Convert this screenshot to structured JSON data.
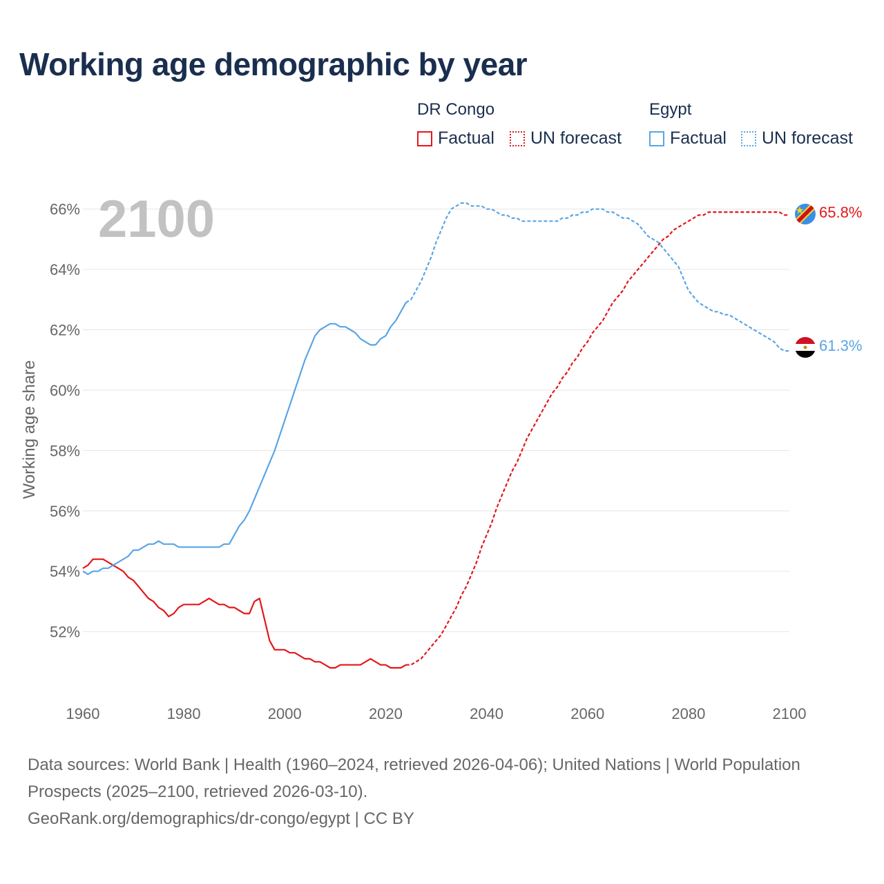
{
  "title": "Working age demographic by year",
  "legend": {
    "groups": [
      {
        "name": "DR Congo",
        "factual_label": "Factual",
        "forecast_label": "UN forecast",
        "color": "#e3171a"
      },
      {
        "name": "Egypt",
        "factual_label": "Factual",
        "forecast_label": "UN forecast",
        "color": "#5aa5e6"
      }
    ]
  },
  "chart_data": {
    "type": "line",
    "title": "Working age demographic by year",
    "xlabel": "",
    "ylabel": "Working age share",
    "xlim": [
      1960,
      2100
    ],
    "ylim": [
      50,
      67
    ],
    "x_ticks": [
      "1960",
      "1980",
      "2000",
      "2020",
      "2040",
      "2060",
      "2080",
      "2100"
    ],
    "y_ticks": [
      "52%",
      "54%",
      "56%",
      "58%",
      "60%",
      "62%",
      "64%",
      "66%"
    ],
    "y_tick_values": [
      52,
      54,
      56,
      58,
      60,
      62,
      64,
      66
    ],
    "year_label": "2100",
    "grid": true,
    "series": [
      {
        "name": "DR Congo",
        "color": "#e3171a",
        "end_label": "65.8%",
        "factual": [
          [
            1960,
            54.1
          ],
          [
            1961,
            54.2
          ],
          [
            1962,
            54.4
          ],
          [
            1963,
            54.4
          ],
          [
            1964,
            54.4
          ],
          [
            1965,
            54.3
          ],
          [
            1966,
            54.2
          ],
          [
            1967,
            54.1
          ],
          [
            1968,
            54.0
          ],
          [
            1969,
            53.8
          ],
          [
            1970,
            53.7
          ],
          [
            1971,
            53.5
          ],
          [
            1972,
            53.3
          ],
          [
            1973,
            53.1
          ],
          [
            1974,
            53.0
          ],
          [
            1975,
            52.8
          ],
          [
            1976,
            52.7
          ],
          [
            1977,
            52.5
          ],
          [
            1978,
            52.6
          ],
          [
            1979,
            52.8
          ],
          [
            1980,
            52.9
          ],
          [
            1981,
            52.9
          ],
          [
            1982,
            52.9
          ],
          [
            1983,
            52.9
          ],
          [
            1984,
            53.0
          ],
          [
            1985,
            53.1
          ],
          [
            1986,
            53.0
          ],
          [
            1987,
            52.9
          ],
          [
            1988,
            52.9
          ],
          [
            1989,
            52.8
          ],
          [
            1990,
            52.8
          ],
          [
            1991,
            52.7
          ],
          [
            1992,
            52.6
          ],
          [
            1993,
            52.6
          ],
          [
            1994,
            53.0
          ],
          [
            1995,
            53.1
          ],
          [
            1996,
            52.4
          ],
          [
            1997,
            51.7
          ],
          [
            1998,
            51.4
          ],
          [
            1999,
            51.4
          ],
          [
            2000,
            51.4
          ],
          [
            2001,
            51.3
          ],
          [
            2002,
            51.3
          ],
          [
            2003,
            51.2
          ],
          [
            2004,
            51.1
          ],
          [
            2005,
            51.1
          ],
          [
            2006,
            51.0
          ],
          [
            2007,
            51.0
          ],
          [
            2008,
            50.9
          ],
          [
            2009,
            50.8
          ],
          [
            2010,
            50.8
          ],
          [
            2011,
            50.9
          ],
          [
            2012,
            50.9
          ],
          [
            2013,
            50.9
          ],
          [
            2014,
            50.9
          ],
          [
            2015,
            50.9
          ],
          [
            2016,
            51.0
          ],
          [
            2017,
            51.1
          ],
          [
            2018,
            51.0
          ],
          [
            2019,
            50.9
          ],
          [
            2020,
            50.9
          ],
          [
            2021,
            50.8
          ],
          [
            2022,
            50.8
          ],
          [
            2023,
            50.8
          ],
          [
            2024,
            50.9
          ]
        ],
        "forecast": [
          [
            2024,
            50.9
          ],
          [
            2025,
            50.9
          ],
          [
            2026,
            51.0
          ],
          [
            2027,
            51.1
          ],
          [
            2028,
            51.3
          ],
          [
            2029,
            51.5
          ],
          [
            2030,
            51.7
          ],
          [
            2031,
            51.9
          ],
          [
            2032,
            52.2
          ],
          [
            2033,
            52.5
          ],
          [
            2034,
            52.8
          ],
          [
            2035,
            53.2
          ],
          [
            2036,
            53.5
          ],
          [
            2037,
            53.9
          ],
          [
            2038,
            54.3
          ],
          [
            2039,
            54.8
          ],
          [
            2040,
            55.2
          ],
          [
            2041,
            55.6
          ],
          [
            2042,
            56.1
          ],
          [
            2043,
            56.5
          ],
          [
            2044,
            56.9
          ],
          [
            2045,
            57.3
          ],
          [
            2046,
            57.6
          ],
          [
            2047,
            58.0
          ],
          [
            2048,
            58.4
          ],
          [
            2049,
            58.7
          ],
          [
            2050,
            59.0
          ],
          [
            2051,
            59.3
          ],
          [
            2052,
            59.6
          ],
          [
            2053,
            59.9
          ],
          [
            2054,
            60.1
          ],
          [
            2055,
            60.4
          ],
          [
            2056,
            60.6
          ],
          [
            2057,
            60.9
          ],
          [
            2058,
            61.1
          ],
          [
            2059,
            61.4
          ],
          [
            2060,
            61.6
          ],
          [
            2061,
            61.9
          ],
          [
            2062,
            62.1
          ],
          [
            2063,
            62.3
          ],
          [
            2064,
            62.6
          ],
          [
            2065,
            62.9
          ],
          [
            2066,
            63.1
          ],
          [
            2067,
            63.3
          ],
          [
            2068,
            63.6
          ],
          [
            2069,
            63.8
          ],
          [
            2070,
            64.0
          ],
          [
            2071,
            64.2
          ],
          [
            2072,
            64.4
          ],
          [
            2073,
            64.6
          ],
          [
            2074,
            64.8
          ],
          [
            2075,
            65.0
          ],
          [
            2076,
            65.1
          ],
          [
            2077,
            65.3
          ],
          [
            2078,
            65.4
          ],
          [
            2079,
            65.5
          ],
          [
            2080,
            65.6
          ],
          [
            2081,
            65.7
          ],
          [
            2082,
            65.8
          ],
          [
            2083,
            65.8
          ],
          [
            2084,
            65.9
          ],
          [
            2085,
            65.9
          ],
          [
            2086,
            65.9
          ],
          [
            2087,
            65.9
          ],
          [
            2088,
            65.9
          ],
          [
            2089,
            65.9
          ],
          [
            2090,
            65.9
          ],
          [
            2091,
            65.9
          ],
          [
            2092,
            65.9
          ],
          [
            2093,
            65.9
          ],
          [
            2094,
            65.9
          ],
          [
            2095,
            65.9
          ],
          [
            2096,
            65.9
          ],
          [
            2097,
            65.9
          ],
          [
            2098,
            65.9
          ],
          [
            2099,
            65.8
          ],
          [
            2100,
            65.8
          ]
        ]
      },
      {
        "name": "Egypt",
        "color": "#5aa5e6",
        "end_label": "61.3%",
        "factual": [
          [
            1960,
            54.0
          ],
          [
            1961,
            53.9
          ],
          [
            1962,
            54.0
          ],
          [
            1963,
            54.0
          ],
          [
            1964,
            54.1
          ],
          [
            1965,
            54.1
          ],
          [
            1966,
            54.2
          ],
          [
            1967,
            54.3
          ],
          [
            1968,
            54.4
          ],
          [
            1969,
            54.5
          ],
          [
            1970,
            54.7
          ],
          [
            1971,
            54.7
          ],
          [
            1972,
            54.8
          ],
          [
            1973,
            54.9
          ],
          [
            1974,
            54.9
          ],
          [
            1975,
            55.0
          ],
          [
            1976,
            54.9
          ],
          [
            1977,
            54.9
          ],
          [
            1978,
            54.9
          ],
          [
            1979,
            54.8
          ],
          [
            1980,
            54.8
          ],
          [
            1981,
            54.8
          ],
          [
            1982,
            54.8
          ],
          [
            1983,
            54.8
          ],
          [
            1984,
            54.8
          ],
          [
            1985,
            54.8
          ],
          [
            1986,
            54.8
          ],
          [
            1987,
            54.8
          ],
          [
            1988,
            54.9
          ],
          [
            1989,
            54.9
          ],
          [
            1990,
            55.2
          ],
          [
            1991,
            55.5
          ],
          [
            1992,
            55.7
          ],
          [
            1993,
            56.0
          ],
          [
            1994,
            56.4
          ],
          [
            1995,
            56.8
          ],
          [
            1996,
            57.2
          ],
          [
            1997,
            57.6
          ],
          [
            1998,
            58.0
          ],
          [
            1999,
            58.5
          ],
          [
            2000,
            59.0
          ],
          [
            2001,
            59.5
          ],
          [
            2002,
            60.0
          ],
          [
            2003,
            60.5
          ],
          [
            2004,
            61.0
          ],
          [
            2005,
            61.4
          ],
          [
            2006,
            61.8
          ],
          [
            2007,
            62.0
          ],
          [
            2008,
            62.1
          ],
          [
            2009,
            62.2
          ],
          [
            2010,
            62.2
          ],
          [
            2011,
            62.1
          ],
          [
            2012,
            62.1
          ],
          [
            2013,
            62.0
          ],
          [
            2014,
            61.9
          ],
          [
            2015,
            61.7
          ],
          [
            2016,
            61.6
          ],
          [
            2017,
            61.5
          ],
          [
            2018,
            61.5
          ],
          [
            2019,
            61.7
          ],
          [
            2020,
            61.8
          ],
          [
            2021,
            62.1
          ],
          [
            2022,
            62.3
          ],
          [
            2023,
            62.6
          ],
          [
            2024,
            62.9
          ]
        ],
        "forecast": [
          [
            2024,
            62.9
          ],
          [
            2025,
            63.0
          ],
          [
            2026,
            63.3
          ],
          [
            2027,
            63.6
          ],
          [
            2028,
            64.0
          ],
          [
            2029,
            64.4
          ],
          [
            2030,
            64.9
          ],
          [
            2031,
            65.3
          ],
          [
            2032,
            65.7
          ],
          [
            2033,
            66.0
          ],
          [
            2034,
            66.1
          ],
          [
            2035,
            66.2
          ],
          [
            2036,
            66.2
          ],
          [
            2037,
            66.1
          ],
          [
            2038,
            66.1
          ],
          [
            2039,
            66.1
          ],
          [
            2040,
            66.0
          ],
          [
            2041,
            66.0
          ],
          [
            2042,
            65.9
          ],
          [
            2043,
            65.8
          ],
          [
            2044,
            65.8
          ],
          [
            2045,
            65.7
          ],
          [
            2046,
            65.7
          ],
          [
            2047,
            65.6
          ],
          [
            2048,
            65.6
          ],
          [
            2049,
            65.6
          ],
          [
            2050,
            65.6
          ],
          [
            2051,
            65.6
          ],
          [
            2052,
            65.6
          ],
          [
            2053,
            65.6
          ],
          [
            2054,
            65.6
          ],
          [
            2055,
            65.7
          ],
          [
            2056,
            65.7
          ],
          [
            2057,
            65.8
          ],
          [
            2058,
            65.8
          ],
          [
            2059,
            65.9
          ],
          [
            2060,
            65.9
          ],
          [
            2061,
            66.0
          ],
          [
            2062,
            66.0
          ],
          [
            2063,
            66.0
          ],
          [
            2064,
            65.9
          ],
          [
            2065,
            65.9
          ],
          [
            2066,
            65.8
          ],
          [
            2067,
            65.7
          ],
          [
            2068,
            65.7
          ],
          [
            2069,
            65.6
          ],
          [
            2070,
            65.5
          ],
          [
            2071,
            65.3
          ],
          [
            2072,
            65.1
          ],
          [
            2073,
            65.0
          ],
          [
            2074,
            64.9
          ],
          [
            2075,
            64.7
          ],
          [
            2076,
            64.5
          ],
          [
            2077,
            64.3
          ],
          [
            2078,
            64.1
          ],
          [
            2079,
            63.7
          ],
          [
            2080,
            63.3
          ],
          [
            2081,
            63.1
          ],
          [
            2082,
            62.9
          ],
          [
            2083,
            62.8
          ],
          [
            2084,
            62.7
          ],
          [
            2085,
            62.6
          ],
          [
            2086,
            62.6
          ],
          [
            2087,
            62.5
          ],
          [
            2088,
            62.5
          ],
          [
            2089,
            62.4
          ],
          [
            2090,
            62.3
          ],
          [
            2091,
            62.2
          ],
          [
            2092,
            62.1
          ],
          [
            2093,
            62.0
          ],
          [
            2094,
            61.9
          ],
          [
            2095,
            61.8
          ],
          [
            2096,
            61.7
          ],
          [
            2097,
            61.6
          ],
          [
            2098,
            61.4
          ],
          [
            2099,
            61.3
          ],
          [
            2100,
            61.3
          ]
        ]
      }
    ]
  },
  "footer": {
    "line1": "Data sources: World Bank | Health (1960–2024, retrieved 2026-04-06); United Nations | World Population Prospects (2025–2100, retrieved 2026-03-10).",
    "line2": "GeoRank.org/demographics/dr-congo/egypt | CC BY"
  }
}
